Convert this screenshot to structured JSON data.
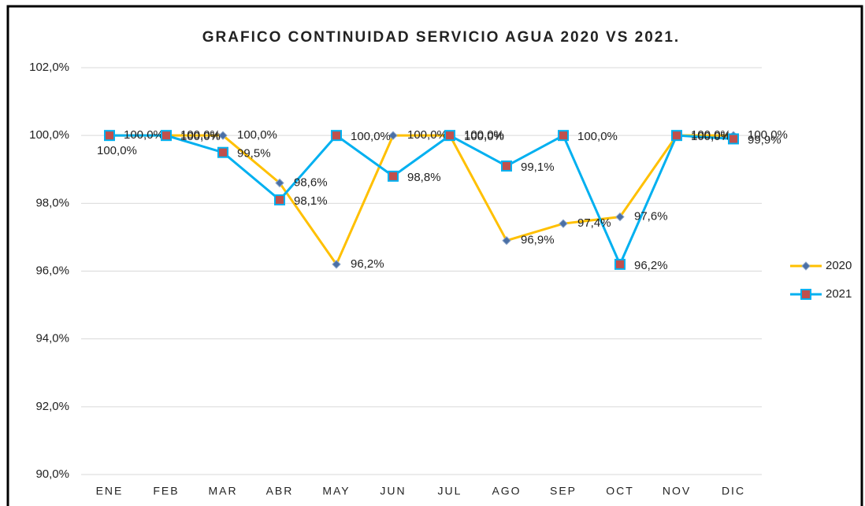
{
  "chart_data": {
    "type": "line",
    "title": "GRAFICO CONTINUIDAD SERVICIO AGUA 2020 VS 2021.",
    "categories": [
      "ENE",
      "FEB",
      "MAR",
      "ABR",
      "MAY",
      "JUN",
      "JUL",
      "AGO",
      "SEP",
      "OCT",
      "NOV",
      "DIC"
    ],
    "series": [
      {
        "name": "2020",
        "color": "#FFC000",
        "marker": "diamond",
        "marker_color": "#4A6FA5",
        "values": [
          100.0,
          100.0,
          100.0,
          98.6,
          96.2,
          100.0,
          100.0,
          96.9,
          97.4,
          97.6,
          100.0,
          100.0
        ],
        "value_labels": [
          "100,0%",
          "100,0%",
          "100,0%",
          "98,6%",
          "96,2%",
          "100,0%",
          "100,0%",
          "96,9%",
          "97,4%",
          "97,6%",
          "100,0%",
          "100,0%"
        ]
      },
      {
        "name": "2021",
        "color": "#00B0F0",
        "marker": "square",
        "marker_color": "#C0504D",
        "values": [
          100.0,
          100.0,
          99.5,
          98.1,
          100.0,
          98.8,
          100.0,
          99.1,
          100.0,
          96.2,
          100.0,
          99.9
        ],
        "value_labels": [
          "100,0%",
          "100,0%",
          "99,5%",
          "98,1%",
          "100,0%",
          "98,8%",
          "100,0%",
          "99,1%",
          "100,0%",
          "96,2%",
          "100,0%",
          "99,9%"
        ]
      }
    ],
    "ylim": [
      90,
      102
    ],
    "yticks": [
      {
        "value": 90,
        "label": "90,0%"
      },
      {
        "value": 92,
        "label": "92,0%"
      },
      {
        "value": 94,
        "label": "94,0%"
      },
      {
        "value": 96,
        "label": "96,0%"
      },
      {
        "value": 98,
        "label": "98,0%"
      },
      {
        "value": 100,
        "label": "100,0%"
      },
      {
        "value": 102,
        "label": "102,0%"
      }
    ],
    "grid": true,
    "legend": "right"
  }
}
